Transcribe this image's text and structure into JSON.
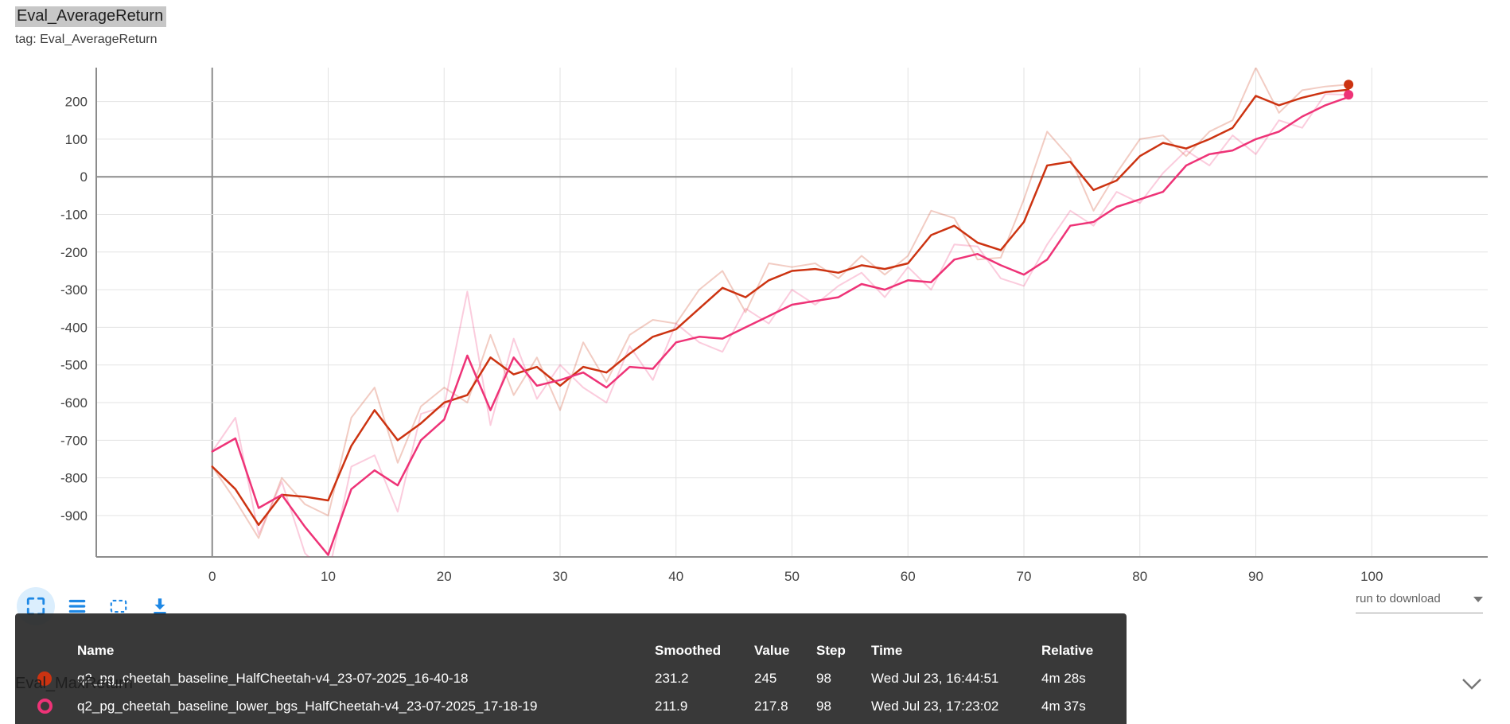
{
  "card": {
    "title": "Eval_AverageReturn",
    "tag_line": "tag: Eval_AverageReturn"
  },
  "toolbar": {
    "buttons": [
      {
        "name": "fit-domain",
        "icon": "corner-brackets-icon",
        "active": true
      },
      {
        "name": "toggle-log-scale",
        "icon": "horizontal-lines-icon",
        "active": false
      },
      {
        "name": "box-select",
        "icon": "dashed-box-icon",
        "active": false
      },
      {
        "name": "download",
        "icon": "download-icon",
        "active": false
      }
    ],
    "accent_color": "#1e88e5"
  },
  "download": {
    "label": "run to download"
  },
  "next_section": {
    "title": "Eval_MaxReturn"
  },
  "tooltip": {
    "headers": [
      "Name",
      "Smoothed",
      "Value",
      "Step",
      "Time",
      "Relative"
    ],
    "rows": [
      {
        "color": "#cc3311",
        "dot_style": "solid",
        "name": "q2_pg_cheetah_baseline_HalfCheetah-v4_23-07-2025_16-40-18",
        "smoothed": "231.2",
        "value": "245",
        "step": "98",
        "time": "Wed Jul 23, 16:44:51",
        "relative": "4m 28s"
      },
      {
        "color": "#ee3377",
        "dot_style": "ring",
        "name": "q2_pg_cheetah_baseline_lower_bgs_HalfCheetah-v4_23-07-2025_17-18-19",
        "smoothed": "211.9",
        "value": "217.8",
        "step": "98",
        "time": "Wed Jul 23, 17:23:02",
        "relative": "4m 37s"
      }
    ]
  },
  "chart_data": {
    "type": "line",
    "title": "Eval_AverageReturn",
    "xlabel": "",
    "ylabel": "",
    "xlim": [
      -10,
      110
    ],
    "ylim": [
      -1010,
      290
    ],
    "xticks": [
      0,
      10,
      20,
      30,
      40,
      50,
      60,
      70,
      80,
      90,
      100
    ],
    "yticks": [
      200,
      100,
      0,
      -100,
      -200,
      -300,
      -400,
      -500,
      -600,
      -700,
      -800,
      -900
    ],
    "grid": true,
    "legend_position": "none",
    "x": [
      0,
      2,
      4,
      6,
      8,
      10,
      12,
      14,
      16,
      18,
      20,
      22,
      24,
      26,
      28,
      30,
      32,
      34,
      36,
      38,
      40,
      42,
      44,
      46,
      48,
      50,
      52,
      54,
      56,
      58,
      60,
      62,
      64,
      66,
      68,
      70,
      72,
      74,
      76,
      78,
      80,
      82,
      84,
      86,
      88,
      90,
      92,
      94,
      96,
      98
    ],
    "series": [
      {
        "name": "q2_pg_cheetah_baseline_HalfCheetah-v4_23-07-2025_16-40-18",
        "variant": "raw",
        "color": "#cc3311",
        "opacity": 0.25,
        "width": 2,
        "values": [
          -770,
          -860,
          -960,
          -800,
          -870,
          -900,
          -640,
          -560,
          -760,
          -610,
          -560,
          -600,
          -420,
          -580,
          -480,
          -620,
          -440,
          -545,
          -420,
          -380,
          -390,
          -300,
          -250,
          -360,
          -230,
          -240,
          -230,
          -270,
          -210,
          -260,
          -210,
          -90,
          -110,
          -220,
          -215,
          -60,
          120,
          50,
          -90,
          10,
          100,
          110,
          55,
          120,
          150,
          290,
          170,
          230,
          240,
          245
        ]
      },
      {
        "name": "q2_pg_cheetah_baseline_lower_bgs_HalfCheetah-v4_23-07-2025_17-18-19",
        "variant": "raw",
        "color": "#ee3377",
        "opacity": 0.25,
        "width": 2,
        "values": [
          -730,
          -640,
          -950,
          -810,
          -1000,
          -1060,
          -770,
          -740,
          -890,
          -630,
          -610,
          -305,
          -660,
          -430,
          -590,
          -500,
          -560,
          -600,
          -450,
          -540,
          -390,
          -440,
          -465,
          -350,
          -390,
          -300,
          -340,
          -290,
          -255,
          -320,
          -240,
          -300,
          -180,
          -185,
          -270,
          -290,
          -180,
          -90,
          -130,
          -40,
          -70,
          10,
          70,
          30,
          110,
          60,
          150,
          130,
          220,
          217.8
        ]
      },
      {
        "name": "q2_pg_cheetah_baseline_HalfCheetah-v4_23-07-2025_16-40-18",
        "variant": "smoothed",
        "color": "#cc3311",
        "opacity": 1,
        "width": 2.5,
        "values": [
          -770,
          -830,
          -925,
          -845,
          -850,
          -860,
          -715,
          -620,
          -700,
          -655,
          -600,
          -580,
          -480,
          -525,
          -505,
          -555,
          -505,
          -520,
          -470,
          -425,
          -405,
          -350,
          -295,
          -320,
          -275,
          -250,
          -245,
          -255,
          -235,
          -245,
          -230,
          -155,
          -130,
          -175,
          -195,
          -120,
          30,
          40,
          -35,
          -10,
          55,
          90,
          75,
          100,
          130,
          215,
          190,
          210,
          225,
          231.2
        ]
      },
      {
        "name": "q2_pg_cheetah_baseline_lower_bgs_HalfCheetah-v4_23-07-2025_17-18-19",
        "variant": "smoothed",
        "color": "#ee3377",
        "opacity": 1,
        "width": 2.5,
        "values": [
          -730,
          -695,
          -880,
          -845,
          -930,
          -1005,
          -830,
          -780,
          -820,
          -700,
          -645,
          -475,
          -620,
          -480,
          -555,
          -540,
          -520,
          -560,
          -505,
          -510,
          -440,
          -425,
          -430,
          -400,
          -370,
          -340,
          -330,
          -320,
          -285,
          -300,
          -275,
          -280,
          -220,
          -205,
          -235,
          -260,
          -220,
          -130,
          -120,
          -80,
          -60,
          -40,
          30,
          60,
          70,
          100,
          120,
          160,
          190,
          211.9
        ]
      }
    ],
    "end_dots": [
      {
        "step": 98,
        "value": 245,
        "color": "#cc3311"
      },
      {
        "step": 98,
        "value": 217.8,
        "color": "#ee3377"
      }
    ]
  }
}
